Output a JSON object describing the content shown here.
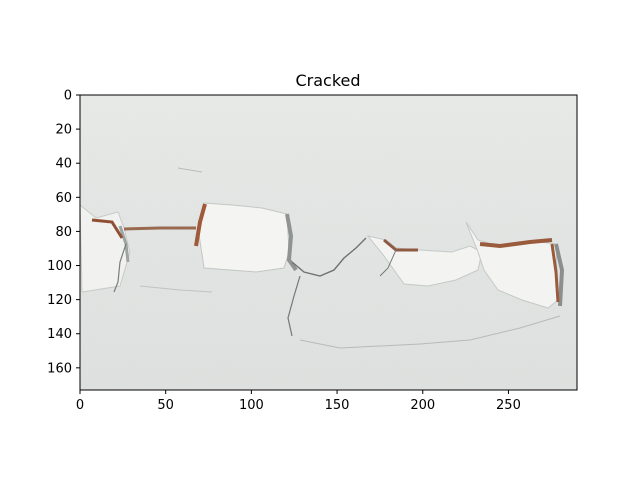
{
  "figure": {
    "title": "Cracked"
  },
  "image_axes": {
    "x_ticks": [
      "0",
      "50",
      "100",
      "150",
      "200",
      "250"
    ],
    "x_tick_values": [
      0,
      50,
      100,
      150,
      200,
      250
    ],
    "y_ticks": [
      "0",
      "20",
      "40",
      "60",
      "80",
      "100",
      "120",
      "140",
      "160"
    ],
    "y_tick_values": [
      0,
      20,
      40,
      60,
      80,
      100,
      120,
      140,
      160
    ],
    "x_range": [
      0,
      290
    ],
    "y_range": [
      0,
      173
    ]
  },
  "photo": {
    "subject": "cracked-peeling-paint-wall",
    "colors": {
      "wall": "#e6e8e6",
      "wall_light": "#f2f3f1",
      "shadow": "#b9bdbb",
      "crack_dark": "#6f6f6c",
      "rust": "#9a5a3c"
    }
  }
}
